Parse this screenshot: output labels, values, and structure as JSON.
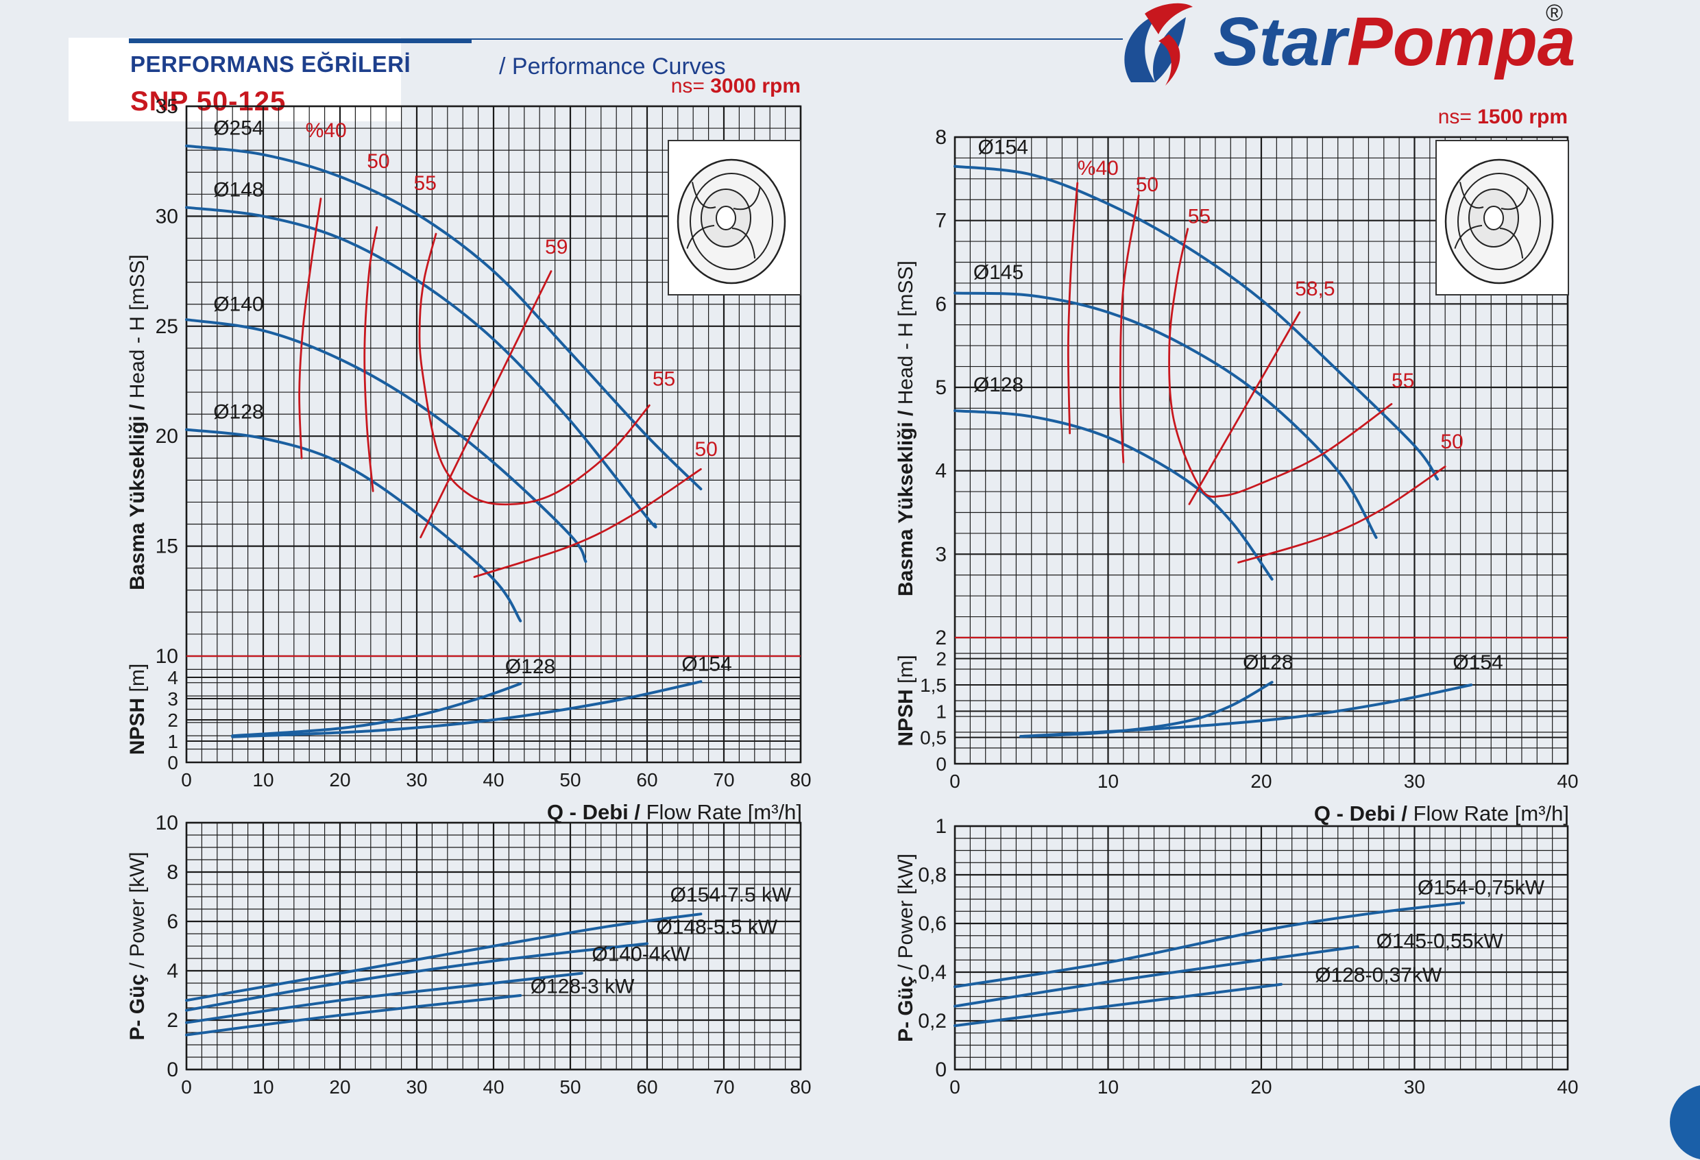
{
  "header": {
    "title_tr": "PERFORMANS EĞRİLERİ",
    "title_en": "/ Performance Curves",
    "model": "SNP 50-125"
  },
  "logo": {
    "star": "Star",
    "pompa": "Pompa",
    "registered": "®",
    "icon": "pump-logo-icon"
  },
  "colors": {
    "curve_blue": "#1a5fa0",
    "efficiency_red": "#c8171e",
    "grid": "#1a1a1a",
    "background": "#e9edf2"
  },
  "chart_data": [
    {
      "id": "left",
      "speed_label_prefix": "ns=",
      "speed_label_value": "3000 rpm",
      "type": "line",
      "xlabel_bold": "Q - Debi /",
      "xlabel_normal": "Flow Rate",
      "xlabel_unit": "m³/h",
      "xlim": [
        0,
        80
      ],
      "x_ticks": [
        0,
        10,
        20,
        30,
        40,
        50,
        60,
        70,
        80
      ],
      "head": {
        "ylabel_bold": "Basma Yüksekliği /",
        "ylabel_normal": "Head - H",
        "ylabel_unit": "mSS",
        "ylim": [
          10,
          35
        ],
        "y_ticks": [
          10,
          15,
          20,
          25,
          30,
          35
        ],
        "series": [
          {
            "name": "Ø254",
            "points": [
              [
                0,
                33.2
              ],
              [
                10,
                32.8
              ],
              [
                20,
                31.8
              ],
              [
                30,
                30.1
              ],
              [
                40,
                27.5
              ],
              [
                50,
                23.8
              ],
              [
                60,
                20
              ],
              [
                67,
                17.6
              ]
            ]
          },
          {
            "name": "Ø148",
            "points": [
              [
                0,
                30.4
              ],
              [
                10,
                30
              ],
              [
                20,
                29
              ],
              [
                30,
                27.1
              ],
              [
                40,
                24.4
              ],
              [
                50,
                20.7
              ],
              [
                60,
                16.3
              ],
              [
                61,
                16
              ]
            ]
          },
          {
            "name": "Ø140",
            "points": [
              [
                0,
                25.3
              ],
              [
                10,
                24.8
              ],
              [
                20,
                23.5
              ],
              [
                30,
                21.5
              ],
              [
                40,
                18.8
              ],
              [
                50,
                15.5
              ],
              [
                52,
                14.3
              ]
            ]
          },
          {
            "name": "Ø128",
            "points": [
              [
                0,
                20.3
              ],
              [
                10,
                19.9
              ],
              [
                20,
                18.8
              ],
              [
                30,
                16.5
              ],
              [
                40,
                13.5
              ],
              [
                43.5,
                11.6
              ]
            ]
          }
        ],
        "efficiency": [
          {
            "name": "%40",
            "points": [
              [
                15,
                19
              ],
              [
                14.7,
                22
              ],
              [
                15.2,
                25
              ],
              [
                16.3,
                28
              ],
              [
                17.5,
                30.8
              ]
            ]
          },
          {
            "name": "50",
            "points": [
              [
                24.3,
                17.5
              ],
              [
                23.5,
                20.5
              ],
              [
                23.2,
                24
              ],
              [
                23.8,
                27.5
              ],
              [
                24.8,
                29.5
              ]
            ]
          },
          {
            "name": "55",
            "points": [
              [
                60.3,
                21.4
              ],
              [
                55,
                19.2
              ],
              [
                48,
                17.4
              ],
              [
                42,
                16.9
              ],
              [
                37,
                17.3
              ],
              [
                33,
                19
              ],
              [
                30.7,
                23
              ],
              [
                30.4,
                25.3
              ],
              [
                31,
                27.2
              ],
              [
                32.5,
                29.2
              ]
            ]
          },
          {
            "name": "59",
            "points": [
              [
                30.5,
                15.4
              ],
              [
                47.5,
                27.5
              ]
            ]
          },
          {
            "name": "55",
            "points": [
              [
                37.5,
                13.6
              ],
              [
                50,
                15
              ],
              [
                58,
                16.4
              ],
              [
                67,
                18.5
              ]
            ]
          }
        ],
        "series_labels": [
          {
            "text": "Ø254",
            "x": 3.5,
            "y": 33.7
          },
          {
            "text": "Ø148",
            "x": 3.5,
            "y": 30.9
          },
          {
            "text": "Ø140",
            "x": 3.5,
            "y": 25.7
          },
          {
            "text": "Ø128",
            "x": 3.5,
            "y": 20.8
          }
        ],
        "eff_labels": [
          {
            "text": "%40",
            "x": 15.5,
            "y": 33.6
          },
          {
            "text": "50",
            "x": 23.5,
            "y": 32.2
          },
          {
            "text": "55",
            "x": 29.6,
            "y": 31.2
          },
          {
            "text": "59",
            "x": 46.7,
            "y": 28.3
          },
          {
            "text": "55",
            "x": 60.7,
            "y": 22.3
          },
          {
            "text": "50",
            "x": 66.2,
            "y": 19.1
          }
        ]
      },
      "npsh": {
        "ylabel_bold": "NPSH",
        "ylabel_unit": "m",
        "ylim": [
          0,
          5
        ],
        "y_tick_values": [
          0,
          1,
          2,
          3,
          4
        ],
        "y_tick_labels": [
          "0",
          "1",
          "2",
          "3",
          "4"
        ],
        "top_label": "10",
        "series": [
          {
            "name": "Ø128",
            "points": [
              [
                6,
                1.25
              ],
              [
                20,
                1.6
              ],
              [
                30,
                2.2
              ],
              [
                38,
                3
              ],
              [
                43.5,
                3.7
              ]
            ]
          },
          {
            "name": "Ø154",
            "points": [
              [
                6,
                1.2
              ],
              [
                25,
                1.5
              ],
              [
                40,
                2
              ],
              [
                55,
                2.85
              ],
              [
                67,
                3.8
              ]
            ]
          }
        ],
        "series_labels": [
          {
            "text": "Ø128",
            "x": 41.5,
            "y": 4.2
          },
          {
            "text": "Ø154",
            "x": 64.5,
            "y": 4.3
          }
        ]
      },
      "power": {
        "ylabel_bold": "P- Güç",
        "ylabel_normal": "/ Power",
        "ylabel_unit": "kW",
        "ylim": [
          0,
          10
        ],
        "y_ticks": [
          0,
          2,
          4,
          6,
          8,
          10
        ],
        "series": [
          {
            "name": "Ø154-7.5 kW",
            "points": [
              [
                0,
                2.8
              ],
              [
                20,
                3.9
              ],
              [
                40,
                5
              ],
              [
                55,
                5.8
              ],
              [
                67,
                6.3
              ]
            ],
            "label_x": 63,
            "label_y": 6.8
          },
          {
            "name": "Ø148-5.5 kW",
            "points": [
              [
                0,
                2.4
              ],
              [
                20,
                3.5
              ],
              [
                40,
                4.4
              ],
              [
                60,
                5.1
              ]
            ],
            "label_x": 61.2,
            "label_y": 5.5
          },
          {
            "name": "Ø140-4kW",
            "points": [
              [
                0,
                1.9
              ],
              [
                20,
                2.8
              ],
              [
                40,
                3.5
              ],
              [
                51.5,
                3.9
              ]
            ],
            "label_x": 52.8,
            "label_y": 4.4
          },
          {
            "name": "Ø128-3 kW",
            "points": [
              [
                0,
                1.4
              ],
              [
                20,
                2.2
              ],
              [
                43.5,
                3
              ]
            ],
            "label_x": 44.8,
            "label_y": 3.1
          }
        ]
      }
    },
    {
      "id": "right",
      "speed_label_prefix": "ns=",
      "speed_label_value": "1500 rpm",
      "type": "line",
      "xlabel_bold": "Q - Debi /",
      "xlabel_normal": "Flow Rate",
      "xlabel_unit": "m³/h",
      "xlim": [
        0,
        40
      ],
      "x_ticks": [
        0,
        10,
        20,
        30,
        40
      ],
      "head": {
        "ylabel_bold": "Basma Yüksekliği /",
        "ylabel_normal": "Head - H",
        "ylabel_unit": "mSS",
        "ylim": [
          2,
          8
        ],
        "y_ticks": [
          2,
          3,
          4,
          5,
          6,
          7,
          8
        ],
        "series": [
          {
            "name": "Ø154",
            "points": [
              [
                0,
                7.65
              ],
              [
                5,
                7.55
              ],
              [
                10,
                7.2
              ],
              [
                15,
                6.7
              ],
              [
                20,
                6.05
              ],
              [
                25,
                5.2
              ],
              [
                30,
                4.3
              ],
              [
                31.5,
                3.9
              ]
            ]
          },
          {
            "name": "Ø145",
            "points": [
              [
                0,
                6.13
              ],
              [
                5,
                6.1
              ],
              [
                10,
                5.9
              ],
              [
                15,
                5.5
              ],
              [
                20,
                4.9
              ],
              [
                25,
                4
              ],
              [
                27.5,
                3.2
              ]
            ]
          },
          {
            "name": "Ø128",
            "points": [
              [
                0,
                4.72
              ],
              [
                5,
                4.65
              ],
              [
                10,
                4.4
              ],
              [
                15,
                3.9
              ],
              [
                18,
                3.4
              ],
              [
                20.7,
                2.7
              ]
            ]
          }
        ],
        "efficiency": [
          {
            "name": "%40",
            "points": [
              [
                7.5,
                4.45
              ],
              [
                7.4,
                5.5
              ],
              [
                7.6,
                6.5
              ],
              [
                8,
                7.45
              ]
            ]
          },
          {
            "name": "50",
            "points": [
              [
                11,
                4.1
              ],
              [
                10.8,
                5
              ],
              [
                11,
                6.2
              ],
              [
                12,
                7.3
              ]
            ]
          },
          {
            "name": "55",
            "points": [
              [
                28.5,
                4.8
              ],
              [
                24,
                4.2
              ],
              [
                20,
                3.85
              ],
              [
                17.5,
                3.7
              ],
              [
                16,
                3.8
              ],
              [
                14.3,
                4.6
              ],
              [
                14,
                5.5
              ],
              [
                14.5,
                6.3
              ],
              [
                15.2,
                6.9
              ]
            ]
          },
          {
            "name": "58,5",
            "points": [
              [
                15.3,
                3.6
              ],
              [
                22.5,
                5.9
              ]
            ]
          },
          {
            "name": "50",
            "points": [
              [
                18.5,
                2.9
              ],
              [
                24,
                3.2
              ],
              [
                28,
                3.55
              ],
              [
                32,
                4.05
              ]
            ]
          }
        ],
        "series_labels": [
          {
            "text": "Ø154",
            "x": 1.5,
            "y": 7.8
          },
          {
            "text": "Ø145",
            "x": 1.2,
            "y": 6.3
          },
          {
            "text": "Ø128",
            "x": 1.2,
            "y": 4.95
          }
        ],
        "eff_labels": [
          {
            "text": "%40",
            "x": 8,
            "y": 7.55
          },
          {
            "text": "50",
            "x": 11.8,
            "y": 7.35
          },
          {
            "text": "55",
            "x": 15.2,
            "y": 6.97
          },
          {
            "text": "58,5",
            "x": 22.2,
            "y": 6.1
          },
          {
            "text": "55",
            "x": 28.5,
            "y": 5
          },
          {
            "text": "50",
            "x": 31.7,
            "y": 4.27
          }
        ]
      },
      "npsh": {
        "ylabel_bold": "NPSH",
        "ylabel_unit": "m",
        "ylim": [
          0,
          2.4
        ],
        "y_tick_values": [
          0,
          0.5,
          1,
          1.5,
          2
        ],
        "y_tick_labels": [
          "0",
          "0,5",
          "1",
          "1,5",
          "2"
        ],
        "top_label": "2",
        "series": [
          {
            "name": "Ø128",
            "points": [
              [
                4.3,
                0.52
              ],
              [
                10,
                0.6
              ],
              [
                15,
                0.8
              ],
              [
                18,
                1.1
              ],
              [
                20.7,
                1.55
              ]
            ]
          },
          {
            "name": "Ø154",
            "points": [
              [
                4.3,
                0.52
              ],
              [
                15,
                0.7
              ],
              [
                22,
                0.88
              ],
              [
                28,
                1.15
              ],
              [
                33.7,
                1.5
              ]
            ]
          }
        ],
        "series_labels": [
          {
            "text": "Ø128",
            "x": 18.8,
            "y": 1.8
          },
          {
            "text": "Ø154",
            "x": 32.5,
            "y": 1.8
          }
        ]
      },
      "power": {
        "ylabel_bold": "P- Güç",
        "ylabel_normal": "/ Power",
        "ylabel_unit": "kW",
        "ylim": [
          0,
          1
        ],
        "y_ticks": [
          0,
          0.2,
          0.4,
          0.6,
          0.8,
          1
        ],
        "y_tick_labels": [
          "0",
          "0,2",
          "0,4",
          "0,6",
          "0,8",
          "1"
        ],
        "series": [
          {
            "name": "Ø154-0,75kW",
            "points": [
              [
                0,
                0.34
              ],
              [
                10,
                0.44
              ],
              [
                20,
                0.57
              ],
              [
                27,
                0.64
              ],
              [
                33.2,
                0.685
              ]
            ],
            "label_x": 30.2,
            "label_y": 0.72
          },
          {
            "name": "Ø145-0,55kW",
            "points": [
              [
                0,
                0.26
              ],
              [
                10,
                0.36
              ],
              [
                20,
                0.45
              ],
              [
                26.3,
                0.505
              ]
            ],
            "label_x": 27.5,
            "label_y": 0.5
          },
          {
            "name": "Ø128-0,37kW",
            "points": [
              [
                0,
                0.18
              ],
              [
                10,
                0.26
              ],
              [
                21.3,
                0.35
              ]
            ],
            "label_x": 23.5,
            "label_y": 0.36
          }
        ]
      }
    }
  ]
}
